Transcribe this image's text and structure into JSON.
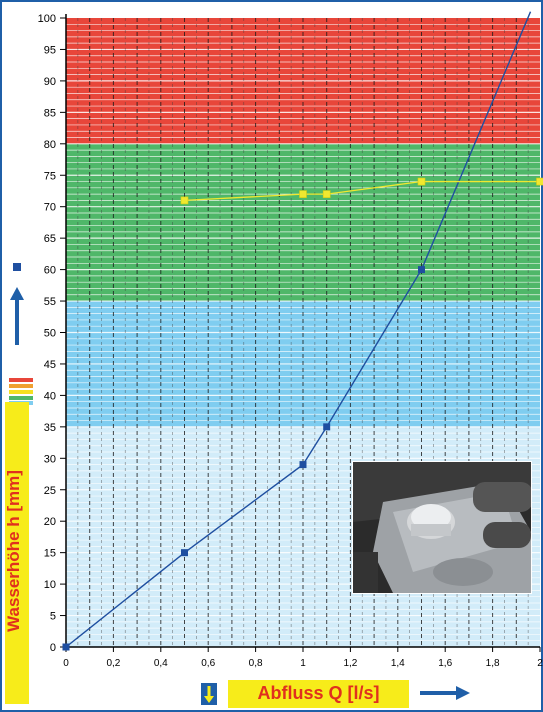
{
  "chart_data": {
    "type": "line",
    "xlabel": "Abfluss Q [l/s]",
    "ylabel": "Wasserhöhe h [mm]",
    "xlim": [
      0,
      2
    ],
    "ylim": [
      0,
      100
    ],
    "x_ticks": [
      "0",
      "0,2",
      "0,4",
      "0,6",
      "0,8",
      "1",
      "1,2",
      "1,4",
      "1,6",
      "1,8",
      "2"
    ],
    "y_ticks": [
      "0",
      "5",
      "10",
      "15",
      "20",
      "25",
      "30",
      "35",
      "40",
      "45",
      "50",
      "55",
      "60",
      "65",
      "70",
      "75",
      "80",
      "85",
      "90",
      "95",
      "100"
    ],
    "bands": [
      {
        "from": 80,
        "to": 100,
        "color": "#e8463a"
      },
      {
        "from": 55,
        "to": 80,
        "color": "#4fb769"
      },
      {
        "from": 35,
        "to": 55,
        "color": "#7fcdf0"
      },
      {
        "from": 0,
        "to": 35,
        "color": "#d2ecf9"
      }
    ],
    "series": [
      {
        "color": "#1f4fa0",
        "points": [
          [
            0,
            0
          ],
          [
            0.5,
            15
          ],
          [
            1.0,
            29
          ],
          [
            1.1,
            35
          ],
          [
            1.5,
            60
          ]
        ],
        "trend_end": [
          1.96,
          101
        ]
      },
      {
        "color": "#f0e830",
        "points": [
          [
            0.5,
            71
          ],
          [
            1.0,
            72
          ],
          [
            1.1,
            72
          ],
          [
            1.5,
            74
          ],
          [
            2.0,
            74
          ]
        ]
      }
    ],
    "grid": true
  },
  "colors": {
    "frame": "#1f5fa8",
    "label_bg": "#f7ec1a",
    "label_text": "#e0301e",
    "arrow_blue": "#1f5fa8"
  }
}
